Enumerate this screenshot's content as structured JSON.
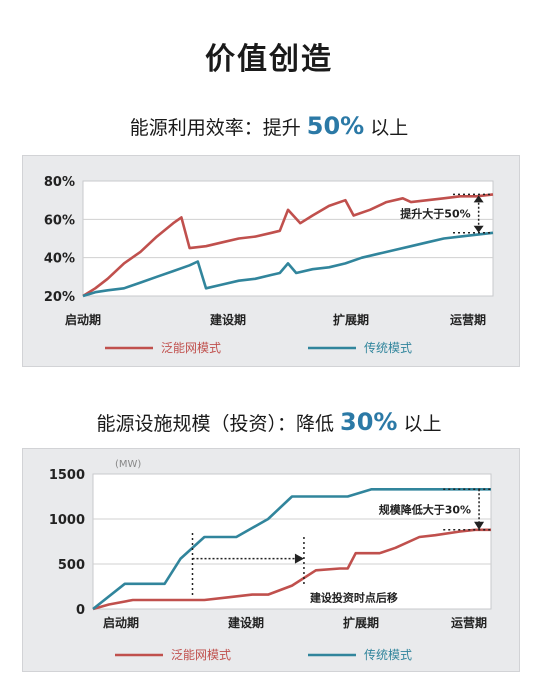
{
  "title": "价值创造",
  "colors": {
    "smart_grid": "#c0504d",
    "traditional": "#31859c",
    "accent": "#2b79a6"
  },
  "section1": {
    "prefix": "能源利用效率：提升",
    "highlight": "50%",
    "suffix": "以上"
  },
  "section2": {
    "prefix": "能源设施规模（投资）：降低",
    "highlight": "30%",
    "suffix": "以上"
  },
  "chart_data": [
    {
      "type": "line",
      "yticks": [
        "80%",
        "60%",
        "40%",
        "20%"
      ],
      "ylim": [
        20,
        80
      ],
      "xticks": [
        "启动期",
        "建设期",
        "扩展期",
        "运营期"
      ],
      "grid": true,
      "legend_position": "bottom",
      "annotation": "提升大于50%",
      "series": [
        {
          "name": "泛能网模式",
          "points": [
            [
              0,
              20
            ],
            [
              3,
              24
            ],
            [
              6,
              29
            ],
            [
              10,
              37
            ],
            [
              14,
              43
            ],
            [
              18,
              51
            ],
            [
              22,
              58
            ],
            [
              24,
              61
            ],
            [
              26,
              45
            ],
            [
              30,
              46
            ],
            [
              34,
              48
            ],
            [
              38,
              50
            ],
            [
              42,
              51
            ],
            [
              46,
              53
            ],
            [
              48,
              54
            ],
            [
              50,
              65
            ],
            [
              53,
              58
            ],
            [
              56,
              62
            ],
            [
              60,
              67
            ],
            [
              64,
              70
            ],
            [
              66,
              62
            ],
            [
              70,
              65
            ],
            [
              74,
              69
            ],
            [
              78,
              71
            ],
            [
              80,
              69
            ],
            [
              84,
              70
            ],
            [
              88,
              71
            ],
            [
              92,
              72
            ],
            [
              96,
              72
            ],
            [
              100,
              73
            ]
          ]
        },
        {
          "name": "传统模式",
          "points": [
            [
              0,
              20
            ],
            [
              3,
              22
            ],
            [
              6,
              23
            ],
            [
              10,
              24
            ],
            [
              14,
              27
            ],
            [
              18,
              30
            ],
            [
              22,
              33
            ],
            [
              26,
              36
            ],
            [
              28,
              38
            ],
            [
              30,
              24
            ],
            [
              34,
              26
            ],
            [
              38,
              28
            ],
            [
              42,
              29
            ],
            [
              46,
              31
            ],
            [
              48,
              32
            ],
            [
              50,
              37
            ],
            [
              52,
              32
            ],
            [
              56,
              34
            ],
            [
              60,
              35
            ],
            [
              64,
              37
            ],
            [
              68,
              40
            ],
            [
              72,
              42
            ],
            [
              76,
              44
            ],
            [
              80,
              46
            ],
            [
              84,
              48
            ],
            [
              88,
              50
            ],
            [
              92,
              51
            ],
            [
              96,
              52
            ],
            [
              100,
              53
            ]
          ]
        }
      ]
    },
    {
      "type": "line",
      "unit": "(MW)",
      "yticks": [
        "1500",
        "1000",
        "500",
        "0"
      ],
      "ylim": [
        0,
        1500
      ],
      "xticks": [
        "启动期",
        "建设期",
        "扩展期",
        "运营期"
      ],
      "grid": true,
      "legend_position": "bottom",
      "annotations": [
        "规模降低大于30%",
        "建设投资时点后移"
      ],
      "series": [
        {
          "name": "泛能网模式",
          "points": [
            [
              0,
              0
            ],
            [
              4,
              50
            ],
            [
              10,
              100
            ],
            [
              20,
              100
            ],
            [
              28,
              100
            ],
            [
              34,
              130
            ],
            [
              40,
              160
            ],
            [
              44,
              160
            ],
            [
              50,
              260
            ],
            [
              56,
              430
            ],
            [
              62,
              450
            ],
            [
              64,
              450
            ],
            [
              66,
              620
            ],
            [
              72,
              620
            ],
            [
              76,
              680
            ],
            [
              82,
              800
            ],
            [
              86,
              820
            ],
            [
              92,
              860
            ],
            [
              96,
              880
            ],
            [
              100,
              880
            ]
          ]
        },
        {
          "name": "传统模式",
          "points": [
            [
              0,
              0
            ],
            [
              8,
              280
            ],
            [
              18,
              280
            ],
            [
              22,
              560
            ],
            [
              28,
              800
            ],
            [
              36,
              800
            ],
            [
              44,
              1000
            ],
            [
              50,
              1250
            ],
            [
              60,
              1250
            ],
            [
              64,
              1250
            ],
            [
              70,
              1330
            ],
            [
              80,
              1330
            ],
            [
              100,
              1330
            ]
          ]
        }
      ]
    }
  ]
}
